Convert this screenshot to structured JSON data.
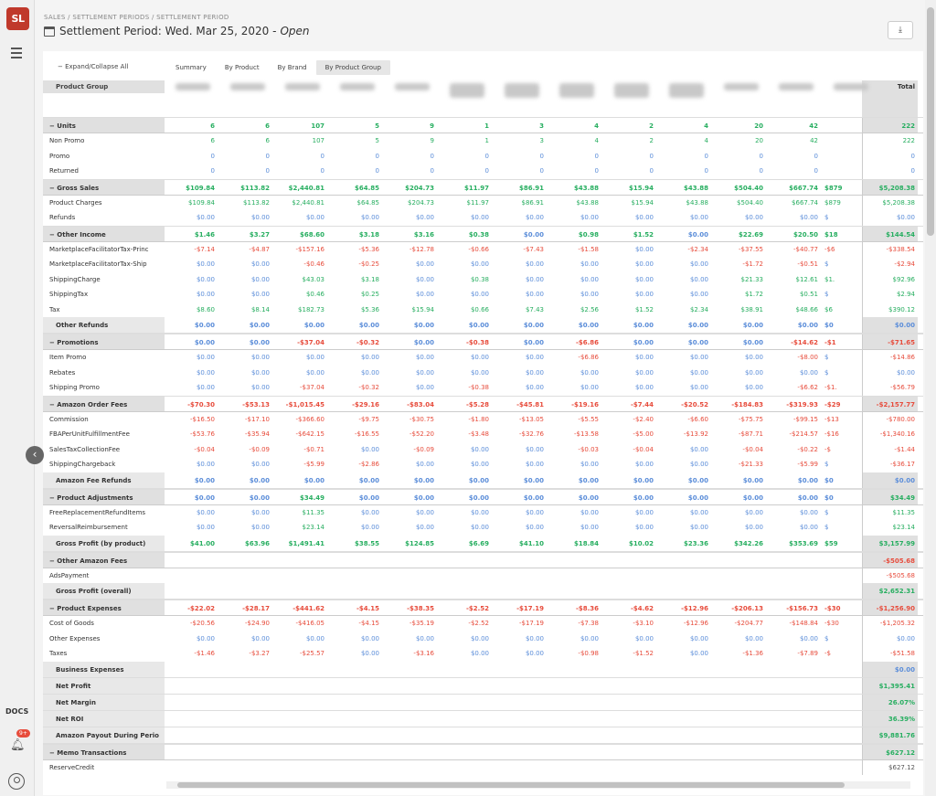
{
  "sidebar": {
    "logo": "SL",
    "docs": "DOCS",
    "badge": "9+"
  },
  "header": {
    "breadcrumb": "SALES / SETTLEMENT PERIODS / SETTLEMENT PERIOD",
    "title": "Settlement Period: Wed. Mar 25, 2020 -",
    "status": "Open"
  },
  "toolbar": {
    "expand_label": "− Expand/Collapse All",
    "tabs": [
      "Summary",
      "By Product",
      "By Brand",
      "By Product Group"
    ],
    "active_tab": "By Product Group"
  },
  "table": {
    "header_label": "Product Group",
    "total_header": "Total",
    "rows": [
      {
        "label": "− Units",
        "type": "group",
        "values": [
          "6",
          "6",
          "107",
          "5",
          "9",
          "1",
          "3",
          "4",
          "2",
          "4",
          "20",
          "42",
          ""
        ],
        "total": "222",
        "style": "num"
      },
      {
        "label": "Non Promo",
        "type": "item",
        "values": [
          "6",
          "6",
          "107",
          "5",
          "9",
          "1",
          "3",
          "4",
          "2",
          "4",
          "20",
          "42",
          ""
        ],
        "total": "222",
        "style": "num"
      },
      {
        "label": "Promo",
        "type": "item",
        "values": [
          "0",
          "0",
          "0",
          "0",
          "0",
          "0",
          "0",
          "0",
          "0",
          "0",
          "0",
          "0",
          ""
        ],
        "total": "0",
        "style": "zero"
      },
      {
        "label": "Returned",
        "type": "item",
        "values": [
          "0",
          "0",
          "0",
          "0",
          "0",
          "0",
          "0",
          "0",
          "0",
          "0",
          "0",
          "0",
          ""
        ],
        "total": "0",
        "style": "zero"
      },
      {
        "label": "− Gross Sales",
        "type": "group",
        "values": [
          "$109.84",
          "$113.82",
          "$2,440.81",
          "$64.85",
          "$204.73",
          "$11.97",
          "$86.91",
          "$43.88",
          "$15.94",
          "$43.88",
          "$504.40",
          "$667.74",
          "$879"
        ],
        "total": "$5,208.38",
        "style": "num"
      },
      {
        "label": "Product Charges",
        "type": "item",
        "values": [
          "$109.84",
          "$113.82",
          "$2,440.81",
          "$64.85",
          "$204.73",
          "$11.97",
          "$86.91",
          "$43.88",
          "$15.94",
          "$43.88",
          "$504.40",
          "$667.74",
          "$879"
        ],
        "total": "$5,208.38",
        "style": "num"
      },
      {
        "label": "Refunds",
        "type": "item",
        "values": [
          "$0.00",
          "$0.00",
          "$0.00",
          "$0.00",
          "$0.00",
          "$0.00",
          "$0.00",
          "$0.00",
          "$0.00",
          "$0.00",
          "$0.00",
          "$0.00",
          "$"
        ],
        "total": "$0.00",
        "style": "zero"
      },
      {
        "label": "− Other Income",
        "type": "group",
        "values": [
          "$1.46",
          "$3.27",
          "$68.60",
          "$3.18",
          "$3.16",
          "$0.38",
          "$0.00",
          "$0.98",
          "$1.52",
          "$0.00",
          "$22.69",
          "$20.50",
          "$18"
        ],
        "total": "$144.54",
        "style": "num"
      },
      {
        "label": "MarketplaceFacilitatorTax-Princ",
        "type": "item",
        "values": [
          "-$7.14",
          "-$4.87",
          "-$157.16",
          "-$5.36",
          "-$12.78",
          "-$0.66",
          "-$7.43",
          "-$1.58",
          "$0.00",
          "-$2.34",
          "-$37.55",
          "-$40.77",
          "-$6"
        ],
        "total": "-$338.54",
        "style": "neg"
      },
      {
        "label": "MarketplaceFacilitatorTax-Ship",
        "type": "item",
        "values": [
          "$0.00",
          "$0.00",
          "-$0.46",
          "-$0.25",
          "$0.00",
          "$0.00",
          "$0.00",
          "$0.00",
          "$0.00",
          "$0.00",
          "-$1.72",
          "-$0.51",
          "$"
        ],
        "total": "-$2.94",
        "style": "neg"
      },
      {
        "label": "ShippingCharge",
        "type": "item",
        "values": [
          "$0.00",
          "$0.00",
          "$43.03",
          "$3.18",
          "$0.00",
          "$0.38",
          "$0.00",
          "$0.00",
          "$0.00",
          "$0.00",
          "$21.33",
          "$12.61",
          "$1."
        ],
        "total": "$92.96",
        "style": "num"
      },
      {
        "label": "ShippingTax",
        "type": "item",
        "values": [
          "$0.00",
          "$0.00",
          "$0.46",
          "$0.25",
          "$0.00",
          "$0.00",
          "$0.00",
          "$0.00",
          "$0.00",
          "$0.00",
          "$1.72",
          "$0.51",
          "$"
        ],
        "total": "$2.94",
        "style": "num"
      },
      {
        "label": "Tax",
        "type": "item",
        "values": [
          "$8.60",
          "$8.14",
          "$182.73",
          "$5.36",
          "$15.94",
          "$0.66",
          "$7.43",
          "$2.56",
          "$1.52",
          "$2.34",
          "$38.91",
          "$48.66",
          "$6"
        ],
        "total": "$390.12",
        "style": "num"
      },
      {
        "label": "Other Refunds",
        "type": "sub",
        "values": [
          "$0.00",
          "$0.00",
          "$0.00",
          "$0.00",
          "$0.00",
          "$0.00",
          "$0.00",
          "$0.00",
          "$0.00",
          "$0.00",
          "$0.00",
          "$0.00",
          "$0"
        ],
        "total": "$0.00",
        "style": "zero"
      },
      {
        "label": "− Promotions",
        "type": "group",
        "values": [
          "$0.00",
          "$0.00",
          "-$37.04",
          "-$0.32",
          "$0.00",
          "-$0.38",
          "$0.00",
          "-$6.86",
          "$0.00",
          "$0.00",
          "$0.00",
          "-$14.62",
          "-$1"
        ],
        "total": "-$71.65",
        "style": "neg"
      },
      {
        "label": "Item Promo",
        "type": "item",
        "values": [
          "$0.00",
          "$0.00",
          "$0.00",
          "$0.00",
          "$0.00",
          "$0.00",
          "$0.00",
          "-$6.86",
          "$0.00",
          "$0.00",
          "$0.00",
          "-$8.00",
          "$"
        ],
        "total": "-$14.86",
        "style": "neg"
      },
      {
        "label": "Rebates",
        "type": "item",
        "values": [
          "$0.00",
          "$0.00",
          "$0.00",
          "$0.00",
          "$0.00",
          "$0.00",
          "$0.00",
          "$0.00",
          "$0.00",
          "$0.00",
          "$0.00",
          "$0.00",
          "$"
        ],
        "total": "$0.00",
        "style": "zero"
      },
      {
        "label": "Shipping Promo",
        "type": "item",
        "values": [
          "$0.00",
          "$0.00",
          "-$37.04",
          "-$0.32",
          "$0.00",
          "-$0.38",
          "$0.00",
          "$0.00",
          "$0.00",
          "$0.00",
          "$0.00",
          "-$6.62",
          "-$1."
        ],
        "total": "-$56.79",
        "style": "neg"
      },
      {
        "label": "− Amazon Order Fees",
        "type": "group",
        "values": [
          "-$70.30",
          "-$53.13",
          "-$1,015.45",
          "-$29.16",
          "-$83.04",
          "-$5.28",
          "-$45.81",
          "-$19.16",
          "-$7.44",
          "-$20.52",
          "-$184.83",
          "-$319.93",
          "-$29"
        ],
        "total": "-$2,157.77",
        "style": "neg"
      },
      {
        "label": "Commission",
        "type": "item",
        "values": [
          "-$16.50",
          "-$17.10",
          "-$366.60",
          "-$9.75",
          "-$30.75",
          "-$1.80",
          "-$13.05",
          "-$5.55",
          "-$2.40",
          "-$6.60",
          "-$75.75",
          "-$99.15",
          "-$13"
        ],
        "total": "-$780.00",
        "style": "neg"
      },
      {
        "label": "FBAPerUnitFulfillmentFee",
        "type": "item",
        "values": [
          "-$53.76",
          "-$35.94",
          "-$642.15",
          "-$16.55",
          "-$52.20",
          "-$3.48",
          "-$32.76",
          "-$13.58",
          "-$5.00",
          "-$13.92",
          "-$87.71",
          "-$214.57",
          "-$16"
        ],
        "total": "-$1,340.16",
        "style": "neg"
      },
      {
        "label": "SalesTaxCollectionFee",
        "type": "item",
        "values": [
          "-$0.04",
          "-$0.09",
          "-$0.71",
          "$0.00",
          "-$0.09",
          "$0.00",
          "$0.00",
          "-$0.03",
          "-$0.04",
          "$0.00",
          "-$0.04",
          "-$0.22",
          "-$"
        ],
        "total": "-$1.44",
        "style": "neg"
      },
      {
        "label": "ShippingChargeback",
        "type": "item",
        "values": [
          "$0.00",
          "$0.00",
          "-$5.99",
          "-$2.86",
          "$0.00",
          "$0.00",
          "$0.00",
          "$0.00",
          "$0.00",
          "$0.00",
          "-$21.33",
          "-$5.99",
          "$"
        ],
        "total": "-$36.17",
        "style": "neg"
      },
      {
        "label": "Amazon Fee Refunds",
        "type": "sub",
        "values": [
          "$0.00",
          "$0.00",
          "$0.00",
          "$0.00",
          "$0.00",
          "$0.00",
          "$0.00",
          "$0.00",
          "$0.00",
          "$0.00",
          "$0.00",
          "$0.00",
          "$0"
        ],
        "total": "$0.00",
        "style": "zero"
      },
      {
        "label": "− Product Adjustments",
        "type": "group",
        "values": [
          "$0.00",
          "$0.00",
          "$34.49",
          "$0.00",
          "$0.00",
          "$0.00",
          "$0.00",
          "$0.00",
          "$0.00",
          "$0.00",
          "$0.00",
          "$0.00",
          "$0"
        ],
        "total": "$34.49",
        "style": "num"
      },
      {
        "label": "FreeReplacementRefundItems",
        "type": "item",
        "values": [
          "$0.00",
          "$0.00",
          "$11.35",
          "$0.00",
          "$0.00",
          "$0.00",
          "$0.00",
          "$0.00",
          "$0.00",
          "$0.00",
          "$0.00",
          "$0.00",
          "$"
        ],
        "total": "$11.35",
        "style": "num"
      },
      {
        "label": "ReversalReimbursement",
        "type": "item",
        "values": [
          "$0.00",
          "$0.00",
          "$23.14",
          "$0.00",
          "$0.00",
          "$0.00",
          "$0.00",
          "$0.00",
          "$0.00",
          "$0.00",
          "$0.00",
          "$0.00",
          "$"
        ],
        "total": "$23.14",
        "style": "num"
      },
      {
        "label": "Gross Profit (by product)",
        "type": "sub",
        "values": [
          "$41.00",
          "$63.96",
          "$1,491.41",
          "$38.55",
          "$124.85",
          "$6.69",
          "$41.10",
          "$18.84",
          "$10.02",
          "$23.36",
          "$342.26",
          "$353.69",
          "$59"
        ],
        "total": "$3,157.99",
        "style": "num"
      },
      {
        "label": "− Other Amazon Fees",
        "type": "group",
        "values": [],
        "total": "-$505.68",
        "style": "neg"
      },
      {
        "label": "AdsPayment",
        "type": "item",
        "values": [],
        "total": "-$505.68",
        "style": "neg"
      },
      {
        "label": "Gross Profit (overall)",
        "type": "sub",
        "values": [],
        "total": "$2,652.31",
        "style": "num"
      },
      {
        "label": "− Product Expenses",
        "type": "group",
        "values": [
          "-$22.02",
          "-$28.17",
          "-$441.62",
          "-$4.15",
          "-$38.35",
          "-$2.52",
          "-$17.19",
          "-$8.36",
          "-$4.62",
          "-$12.96",
          "-$206.13",
          "-$156.73",
          "-$30"
        ],
        "total": "-$1,256.90",
        "style": "neg"
      },
      {
        "label": "Cost of Goods",
        "type": "item",
        "values": [
          "-$20.56",
          "-$24.90",
          "-$416.05",
          "-$4.15",
          "-$35.19",
          "-$2.52",
          "-$17.19",
          "-$7.38",
          "-$3.10",
          "-$12.96",
          "-$204.77",
          "-$148.84",
          "-$30"
        ],
        "total": "-$1,205.32",
        "style": "neg"
      },
      {
        "label": "Other Expenses",
        "type": "item",
        "values": [
          "$0.00",
          "$0.00",
          "$0.00",
          "$0.00",
          "$0.00",
          "$0.00",
          "$0.00",
          "$0.00",
          "$0.00",
          "$0.00",
          "$0.00",
          "$0.00",
          "$"
        ],
        "total": "$0.00",
        "style": "zero"
      },
      {
        "label": "Taxes",
        "type": "item",
        "values": [
          "-$1.46",
          "-$3.27",
          "-$25.57",
          "$0.00",
          "-$3.16",
          "$0.00",
          "$0.00",
          "-$0.98",
          "-$1.52",
          "$0.00",
          "-$1.36",
          "-$7.89",
          "-$"
        ],
        "total": "-$51.58",
        "style": "neg"
      },
      {
        "label": "Business Expenses",
        "type": "sub",
        "values": [],
        "total": "$0.00",
        "style": "zero"
      },
      {
        "label": "Net Profit",
        "type": "sub",
        "values": [],
        "total": "$1,395.41",
        "style": "num"
      },
      {
        "label": "Net Margin",
        "type": "sub",
        "values": [],
        "total": "26.07%",
        "style": "num"
      },
      {
        "label": "Net ROI",
        "type": "sub",
        "values": [],
        "total": "36.39%",
        "style": "num"
      },
      {
        "label": "Amazon Payout During Perio",
        "type": "sub",
        "values": [],
        "total": "$9,881.76",
        "style": "num"
      },
      {
        "label": "− Memo Transactions",
        "type": "group",
        "values": [],
        "total": "$627.12",
        "style": "num"
      },
      {
        "label": "ReserveCredit",
        "type": "item",
        "values": [],
        "total": "$627.12",
        "style": "plain"
      }
    ]
  }
}
